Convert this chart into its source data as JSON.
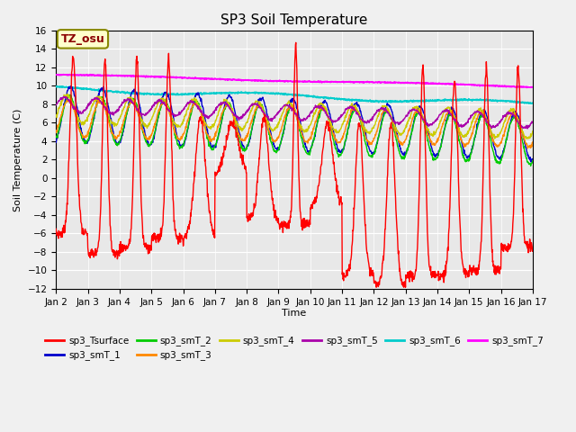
{
  "title": "SP3 Soil Temperature",
  "xlabel": "Time",
  "ylabel": "Soil Temperature (C)",
  "ylim": [
    -12,
    16
  ],
  "yticks": [
    -12,
    -10,
    -8,
    -6,
    -4,
    -2,
    0,
    2,
    4,
    6,
    8,
    10,
    12,
    14,
    16
  ],
  "date_labels": [
    "Jan 2",
    "Jan 3",
    "Jan 4",
    "Jan 5",
    "Jan 6",
    "Jan 7",
    "Jan 8",
    "Jan 9",
    "Jan 10",
    "Jan 11",
    "Jan 12",
    "Jan 13",
    "Jan 14",
    "Jan 15",
    "Jan 16",
    "Jan 17"
  ],
  "tz_label": "TZ_osu",
  "fig_bg": "#f0f0f0",
  "plot_bg": "#e8e8e8",
  "grid_color": "#ffffff",
  "series_colors": {
    "sp3_Tsurface": "#ff0000",
    "sp3_smT_1": "#0000cc",
    "sp3_smT_2": "#00cc00",
    "sp3_smT_3": "#ff8800",
    "sp3_smT_4": "#cccc00",
    "sp3_smT_5": "#aa00aa",
    "sp3_smT_6": "#00cccc",
    "sp3_smT_7": "#ff00ff"
  },
  "legend_rows": [
    [
      "sp3_Tsurface",
      "sp3_smT_1",
      "sp3_smT_2",
      "sp3_smT_3",
      "sp3_smT_4",
      "sp3_smT_5"
    ],
    [
      "sp3_smT_6",
      "sp3_smT_7"
    ]
  ]
}
